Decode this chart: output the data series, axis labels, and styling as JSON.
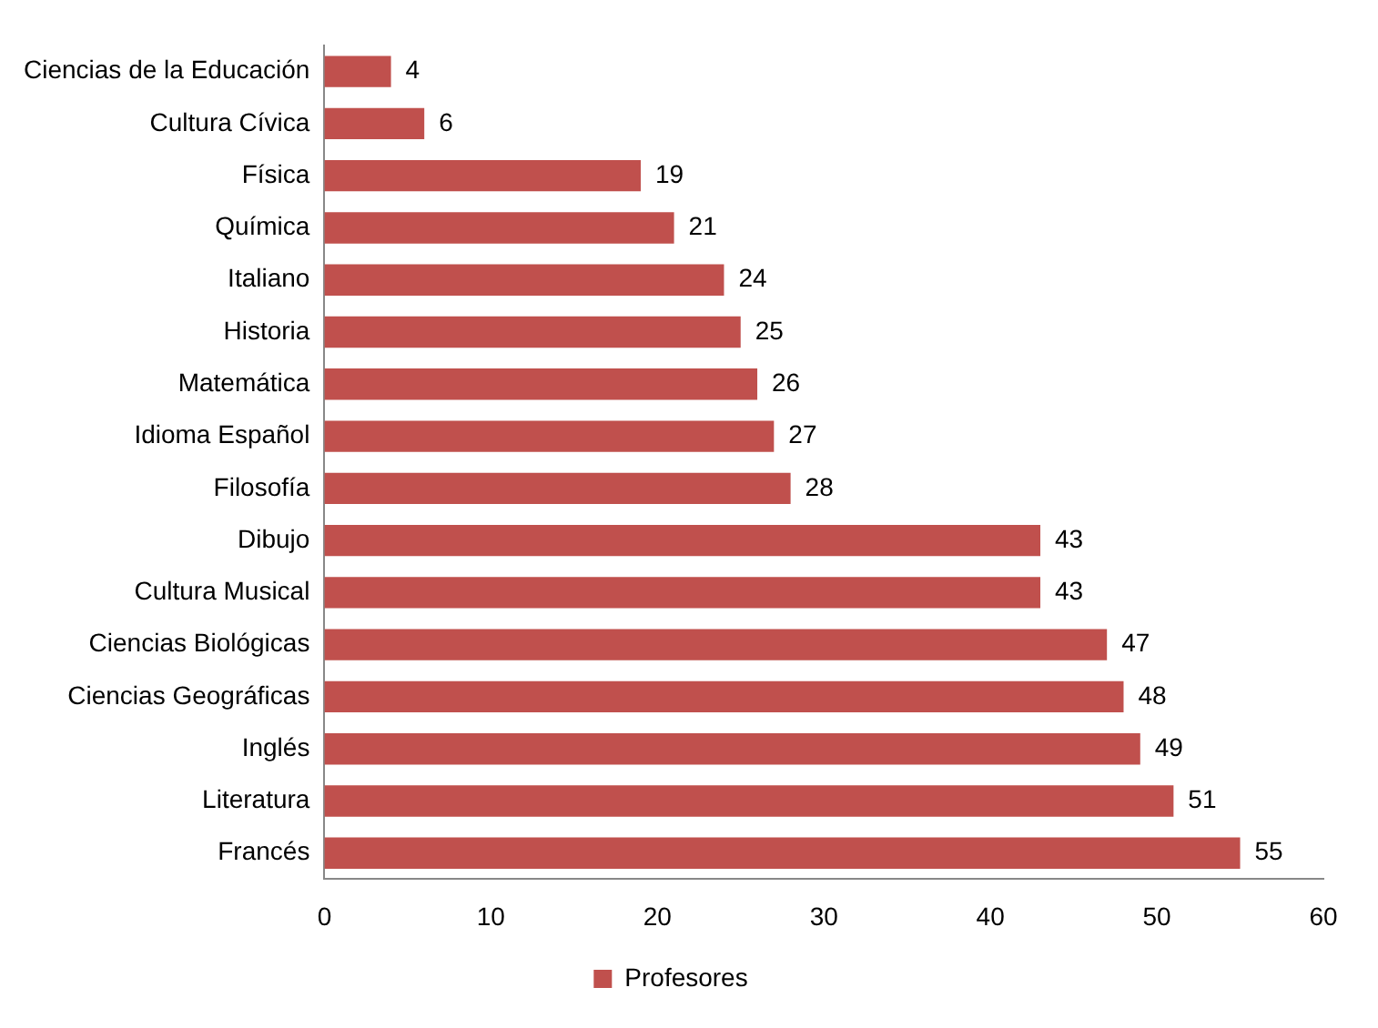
{
  "chart_data": {
    "type": "bar",
    "orientation": "horizontal",
    "categories": [
      "Ciencias de la Educación",
      "Cultura Cívica",
      "Física",
      "Química",
      "Italiano",
      "Historia",
      "Matemática",
      "Idioma Español",
      "Filosofía",
      "Dibujo",
      "Cultura Musical",
      "Ciencias Biológicas",
      "Ciencias Geográficas",
      "Inglés",
      "Literatura",
      "Francés"
    ],
    "series": [
      {
        "name": "Profesores",
        "color": "#c0504d",
        "values": [
          4,
          6,
          19,
          21,
          24,
          25,
          26,
          27,
          28,
          43,
          43,
          47,
          48,
          49,
          51,
          55
        ]
      }
    ],
    "xlim": [
      0,
      60
    ],
    "xticks": [
      0,
      10,
      20,
      30,
      40,
      50,
      60
    ],
    "grid": false,
    "legend": "bottom",
    "data_labels": true
  }
}
